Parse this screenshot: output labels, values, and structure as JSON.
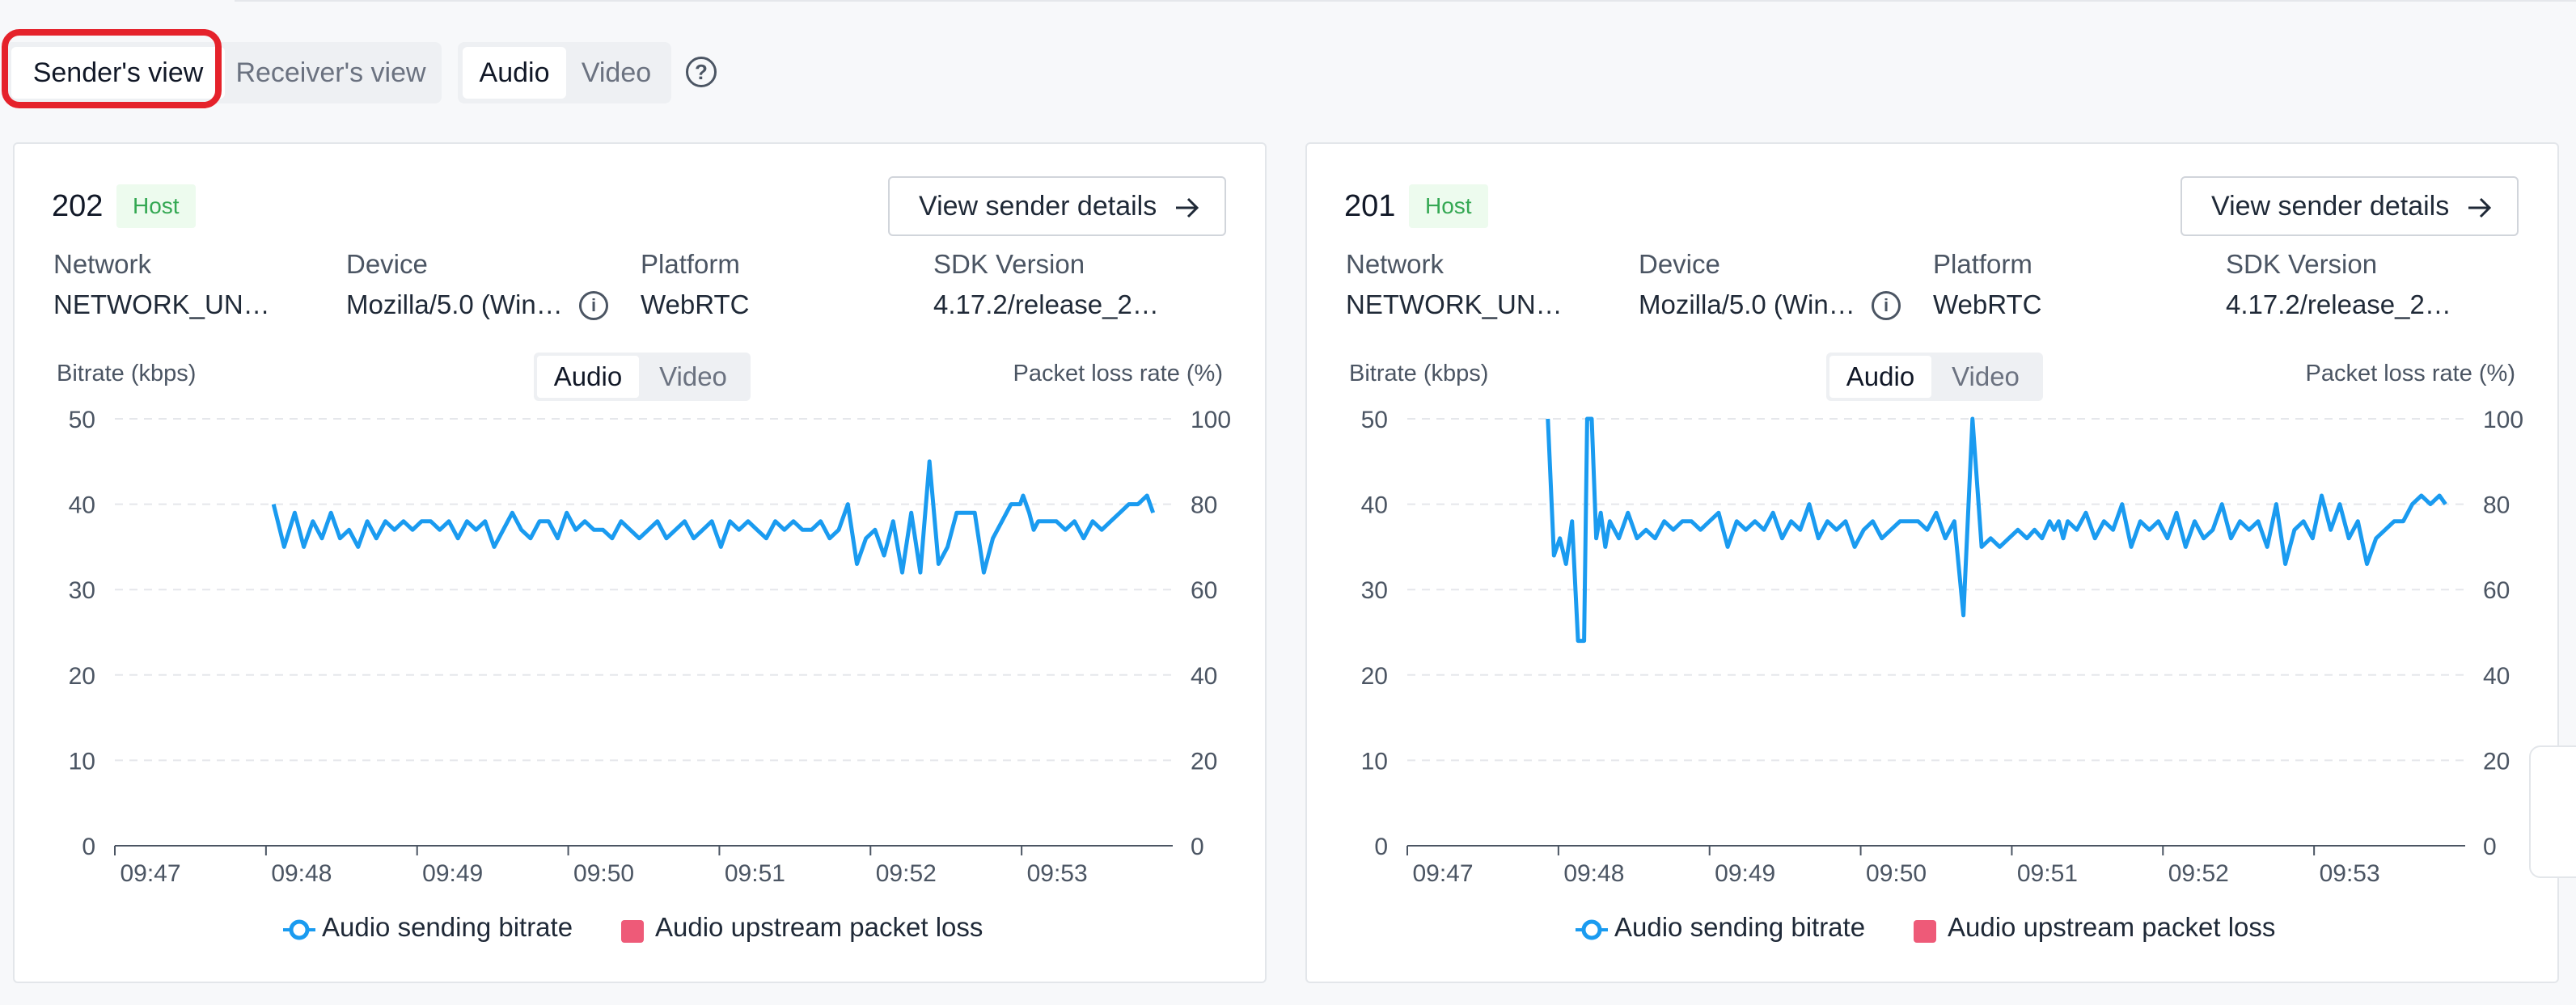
{
  "tabs": {
    "view": [
      {
        "label": "Sender's view",
        "active": true
      },
      {
        "label": "Receiver's view",
        "active": false
      }
    ],
    "media": [
      {
        "label": "Audio",
        "active": true
      },
      {
        "label": "Video",
        "active": false
      }
    ],
    "help_icon": "question-circle-icon"
  },
  "common": {
    "details_label": "View sender details",
    "labels": {
      "network": "Network",
      "device": "Device",
      "platform": "Platform",
      "sdk": "SDK Version"
    },
    "left_axis_title": "Bitrate (kbps)",
    "right_axis_title": "Packet loss rate (%)",
    "chart_tabs": [
      "Audio",
      "Video"
    ],
    "legend": {
      "bitrate": "Audio sending bitrate",
      "loss": "Audio upstream packet loss"
    }
  },
  "colors": {
    "line": "#1a9bf0",
    "loss": "#ee5a78",
    "badge_bg": "#edfbee",
    "badge_text": "#34a853",
    "highlight": "#e5222b"
  },
  "cards": [
    {
      "uid": "202",
      "role": "Host",
      "network": "NETWORK_UN…",
      "device": "Mozilla/5.0 (Win…",
      "platform": "WebRTC",
      "sdk": "4.17.2/release_2…"
    },
    {
      "uid": "201",
      "role": "Host",
      "network": "NETWORK_UN…",
      "device": "Mozilla/5.0 (Win…",
      "platform": "WebRTC",
      "sdk": "4.17.2/release_2…"
    }
  ],
  "chart_data": [
    {
      "type": "line",
      "x_labels": [
        "09:47",
        "09:48",
        "09:49",
        "09:50",
        "09:51",
        "09:52",
        "09:53"
      ],
      "x_range": [
        0,
        7.0
      ],
      "ylim_left": [
        0,
        50
      ],
      "yticks_left": [
        "0",
        "10",
        "20",
        "30",
        "40",
        "50"
      ],
      "ylim_right": [
        0,
        100
      ],
      "yticks_right": [
        "0",
        "20",
        "40",
        "60",
        "80",
        "100"
      ],
      "grid": true,
      "legend_position": "bottom-center",
      "series": [
        {
          "name": "Audio sending bitrate",
          "x": [
            1.0,
            1.07,
            1.14,
            1.2,
            1.26,
            1.32,
            1.38,
            1.44,
            1.5,
            1.56,
            1.62,
            1.68,
            1.74,
            1.8,
            1.86,
            1.92,
            1.98,
            2.04,
            2.1,
            2.16,
            2.22,
            2.28,
            2.34,
            2.4,
            2.46,
            2.52,
            2.58,
            2.64,
            2.7,
            2.76,
            2.82,
            2.88,
            2.94,
            3.0,
            3.06,
            3.12,
            3.18,
            3.24,
            3.3,
            3.36,
            3.42,
            3.48,
            3.54,
            3.6,
            3.66,
            3.72,
            3.78,
            3.84,
            3.9,
            3.96,
            4.02,
            4.08,
            4.14,
            4.2,
            4.26,
            4.32,
            4.38,
            4.44,
            4.5,
            4.56,
            4.62,
            4.68,
            4.74,
            4.8,
            4.86,
            4.92,
            4.98,
            5.04,
            5.1,
            5.16,
            5.22,
            5.28,
            5.34,
            5.4,
            5.46,
            5.52,
            5.58,
            5.64,
            5.7,
            5.76,
            5.82,
            5.88,
            5.94,
            5.96,
            6.0,
            6.03,
            6.06,
            6.12,
            6.18,
            6.24,
            6.3,
            6.36,
            6.42,
            6.48,
            6.54,
            6.6,
            6.66,
            6.72,
            6.78,
            6.82
          ],
          "values": [
            40,
            35,
            39,
            35,
            38,
            36,
            39,
            36,
            37,
            35,
            38,
            36,
            38,
            37,
            38,
            37,
            38,
            38,
            37,
            38,
            36,
            38,
            37,
            38,
            35,
            37,
            39,
            37,
            36,
            38,
            38,
            36,
            39,
            37,
            38,
            37,
            37,
            36,
            38,
            37,
            36,
            37,
            38,
            36,
            37,
            38,
            36,
            37,
            38,
            35,
            38,
            37,
            38,
            37,
            36,
            38,
            37,
            38,
            37,
            37,
            38,
            36,
            37,
            40,
            33,
            36,
            37,
            34,
            38,
            32,
            39,
            32,
            45,
            33,
            35,
            39,
            39,
            39,
            32,
            36,
            38,
            40,
            40,
            41,
            39,
            37,
            38,
            38,
            38,
            37,
            38,
            36,
            38,
            37,
            38,
            39,
            40,
            40,
            41,
            39
          ]
        },
        {
          "name": "Audio upstream packet loss",
          "values": []
        }
      ]
    },
    {
      "type": "line",
      "x_labels": [
        "09:47",
        "09:48",
        "09:49",
        "09:50",
        "09:51",
        "09:52",
        "09:53"
      ],
      "x_range": [
        0,
        7.0
      ],
      "ylim_left": [
        0,
        50
      ],
      "yticks_left": [
        "0",
        "10",
        "20",
        "30",
        "40",
        "50"
      ],
      "ylim_right": [
        0,
        100
      ],
      "yticks_right": [
        "0",
        "20",
        "40",
        "60",
        "80",
        "100"
      ],
      "grid": true,
      "legend_position": "bottom-center",
      "series": [
        {
          "name": "Audio sending bitrate",
          "x": [
            0.88,
            0.92,
            0.96,
            1.0,
            1.04,
            1.08,
            1.12,
            1.14,
            1.17,
            1.2,
            1.23,
            1.26,
            1.29,
            1.35,
            1.41,
            1.47,
            1.53,
            1.59,
            1.65,
            1.71,
            1.77,
            1.83,
            1.89,
            1.95,
            2.01,
            2.07,
            2.13,
            2.19,
            2.25,
            2.31,
            2.37,
            2.43,
            2.49,
            2.55,
            2.61,
            2.67,
            2.73,
            2.79,
            2.85,
            2.91,
            2.97,
            3.03,
            3.09,
            3.15,
            3.21,
            3.27,
            3.33,
            3.39,
            3.45,
            3.51,
            3.57,
            3.63,
            3.69,
            3.75,
            3.81,
            3.87,
            3.93,
            3.99,
            4.05,
            4.1,
            4.15,
            4.2,
            4.23,
            4.26,
            4.29,
            4.32,
            4.38,
            4.44,
            4.5,
            4.56,
            4.62,
            4.68,
            4.74,
            4.8,
            4.86,
            4.92,
            4.98,
            5.04,
            5.1,
            5.16,
            5.22,
            5.28,
            5.34,
            5.4,
            5.46,
            5.52,
            5.58,
            5.64,
            5.7,
            5.76,
            5.82,
            5.88,
            5.94,
            6.0,
            6.06,
            6.12,
            6.18,
            6.24,
            6.3,
            6.36,
            6.42,
            6.48,
            6.54,
            6.6,
            6.66,
            6.72,
            6.78,
            6.82
          ],
          "values": [
            50,
            34,
            36,
            33,
            38,
            24,
            24,
            50,
            50,
            36,
            39,
            35,
            38,
            36,
            39,
            36,
            37,
            36,
            38,
            37,
            38,
            38,
            37,
            38,
            39,
            35,
            38,
            37,
            38,
            37,
            39,
            36,
            38,
            37,
            40,
            36,
            38,
            37,
            38,
            35,
            37,
            38,
            36,
            37,
            38,
            38,
            38,
            37,
            39,
            36,
            38,
            27,
            50,
            35,
            36,
            35,
            36,
            37,
            36,
            37,
            36,
            38,
            37,
            38,
            36,
            38,
            37,
            39,
            36,
            38,
            37,
            40,
            35,
            38,
            37,
            38,
            36,
            39,
            35,
            38,
            36,
            37,
            40,
            36,
            38,
            37,
            38,
            35,
            40,
            33,
            37,
            38,
            36,
            41,
            37,
            40,
            36,
            38,
            33,
            36,
            37,
            38,
            38,
            40,
            41,
            40,
            41,
            40
          ]
        },
        {
          "name": "Audio upstream packet loss",
          "values": []
        }
      ]
    }
  ]
}
